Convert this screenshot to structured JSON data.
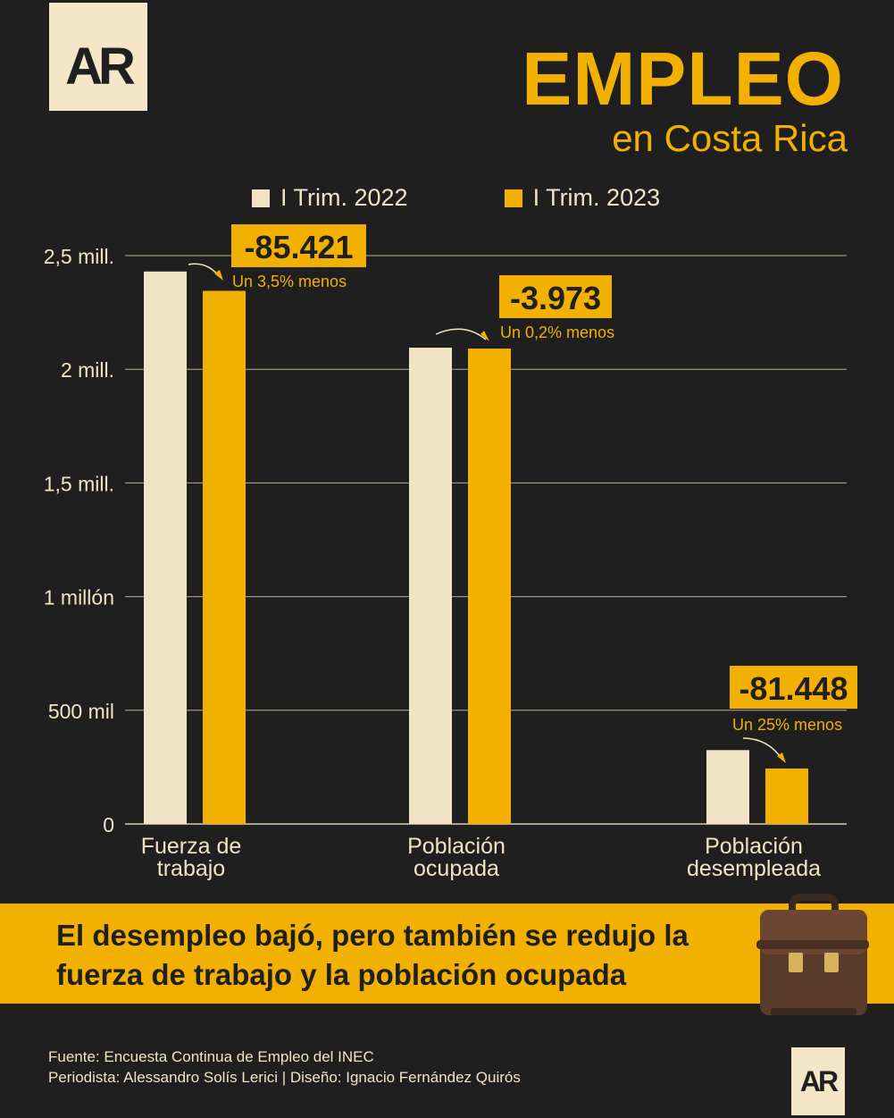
{
  "brand": {
    "logo_text": "AR"
  },
  "header": {
    "title": "EMPLEO",
    "subtitle": "en Costa Rica"
  },
  "colors": {
    "background": "#1f1f1f",
    "series_2022": "#f2e3c4",
    "series_2023": "#f2b001",
    "accent": "#f2b001"
  },
  "chart_data": {
    "type": "bar",
    "categories": [
      "Fuerza de trabajo",
      "Población ocupada",
      "Población desempleada"
    ],
    "category_lines": [
      [
        "Fuerza de",
        "trabajo"
      ],
      [
        "Población",
        "ocupada"
      ],
      [
        "Población",
        "desempleada"
      ]
    ],
    "series": [
      {
        "name": "I Trim. 2022",
        "values": [
          2430000,
          2095000,
          325000
        ]
      },
      {
        "name": "I Trim. 2023",
        "values": [
          2345000,
          2091000,
          244000
        ]
      }
    ],
    "ylim": [
      0,
      2500000
    ],
    "yticks": [
      0,
      500000,
      1000000,
      1500000,
      2000000,
      2500000
    ],
    "ytick_labels": [
      "0",
      "500 mil",
      "1 millón",
      "1,5 mill.",
      "2 mill.",
      "2,5 mill."
    ],
    "grid": true,
    "legend_position": "top",
    "annotations": [
      {
        "category": "Fuerza de trabajo",
        "value_text": "-85.421",
        "note": "Un 3,5% menos"
      },
      {
        "category": "Población ocupada",
        "value_text": "-3.973",
        "note": "Un 0,2% menos"
      },
      {
        "category": "Población desempleada",
        "value_text": "-81.448",
        "note": "Un 25% menos"
      }
    ]
  },
  "banner": {
    "line1": "El desempleo bajó, pero también se redujo la",
    "line2": "fuerza de trabajo y la población ocupada"
  },
  "footer": {
    "source": "Fuente: Encuesta Continua de Empleo del INEC",
    "credits": "Periodista: Alessandro Solís Lerici | Diseño: Ignacio Fernández Quirós"
  }
}
